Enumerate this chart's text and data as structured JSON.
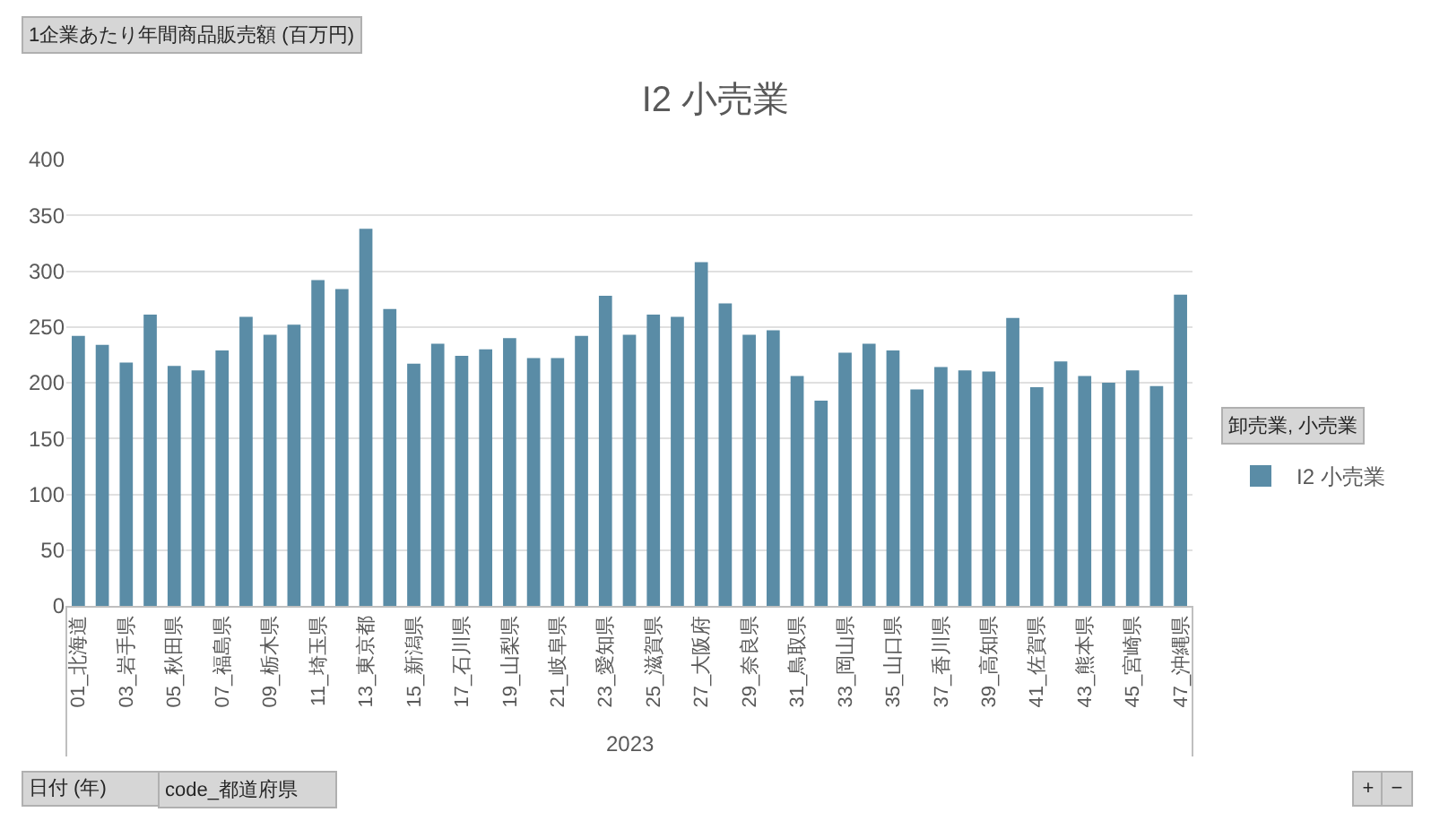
{
  "chart_data": {
    "type": "bar",
    "title": "I2 小売業",
    "xlabel": "2023",
    "legend_title": "卸売業, 小売業",
    "annotations": [
      "1企業あたり年間商品販売額 (百万円)",
      "日付 (年)",
      "code_都道府県",
      "+",
      "−"
    ],
    "categories": [
      "01_北海道",
      null,
      "03_岩手県",
      null,
      "05_秋田県",
      null,
      "07_福島県",
      null,
      "09_栃木県",
      null,
      "11_埼玉県",
      null,
      "13_東京都",
      null,
      "15_新潟県",
      null,
      "17_石川県",
      null,
      "19_山梨県",
      null,
      "21_岐阜県",
      null,
      "23_愛知県",
      null,
      "25_滋賀県",
      null,
      "27_大阪府",
      null,
      "29_奈良県",
      null,
      "31_鳥取県",
      null,
      "33_岡山県",
      null,
      "35_山口県",
      null,
      "37_香川県",
      null,
      "39_高知県",
      null,
      "41_佐賀県",
      null,
      "43_熊本県",
      null,
      "45_宮崎県",
      null,
      "47_沖縄県"
    ],
    "series": [
      {
        "name": "I2 小売業",
        "color": "#5a8ca6",
        "values": [
          242,
          234,
          218,
          261,
          215,
          211,
          229,
          259,
          243,
          252,
          292,
          284,
          338,
          266,
          217,
          235,
          224,
          230,
          240,
          222,
          222,
          242,
          278,
          243,
          261,
          259,
          308,
          271,
          243,
          247,
          206,
          184,
          227,
          235,
          229,
          194,
          214,
          211,
          210,
          258,
          196,
          219,
          206,
          200,
          211,
          197,
          279
        ]
      }
    ],
    "ylim": [
      0,
      400
    ],
    "yticks": [
      0,
      50,
      100,
      150,
      200,
      250,
      300,
      350,
      400
    ],
    "grid": "y",
    "legend": "right"
  }
}
